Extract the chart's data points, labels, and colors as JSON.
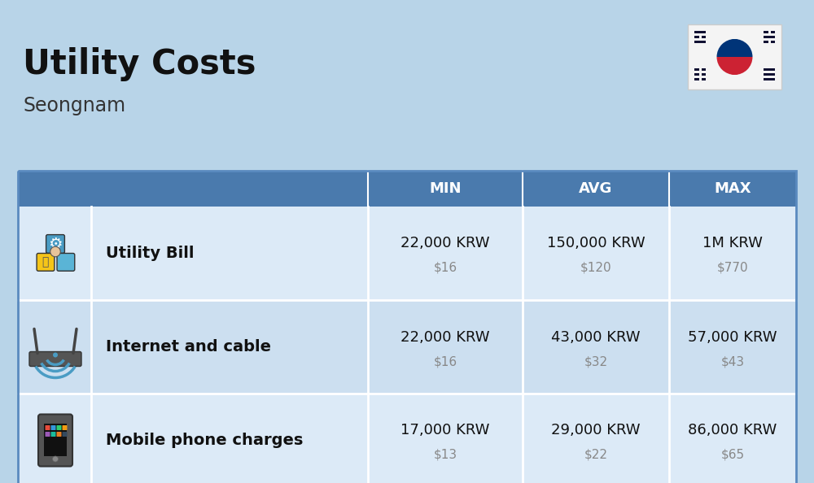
{
  "title": "Utility Costs",
  "subtitle": "Seongnam",
  "background_color": "#b8d4e8",
  "header_color": "#4a7aad",
  "header_text_color": "#ffffff",
  "row_color_light": "#dceaf7",
  "row_color_dark": "#ccdff0",
  "divider_color": "#ffffff",
  "col_headers": [
    "MIN",
    "AVG",
    "MAX"
  ],
  "rows": [
    {
      "label": "Utility Bill",
      "min_krw": "22,000 KRW",
      "min_usd": "$16",
      "avg_krw": "150,000 KRW",
      "avg_usd": "$120",
      "max_krw": "1M KRW",
      "max_usd": "$770"
    },
    {
      "label": "Internet and cable",
      "min_krw": "22,000 KRW",
      "min_usd": "$16",
      "avg_krw": "43,000 KRW",
      "avg_usd": "$32",
      "max_krw": "57,000 KRW",
      "max_usd": "$43"
    },
    {
      "label": "Mobile phone charges",
      "min_krw": "17,000 KRW",
      "min_usd": "$13",
      "avg_krw": "29,000 KRW",
      "avg_usd": "$22",
      "max_krw": "86,000 KRW",
      "max_usd": "$65"
    }
  ],
  "title_fontsize": 30,
  "subtitle_fontsize": 17,
  "header_fontsize": 13,
  "label_fontsize": 14,
  "value_fontsize": 13,
  "usd_fontsize": 11,
  "flag_box_color": "#f0f0f0",
  "table_border_color": "#5a8abf",
  "label_color": "#111111",
  "usd_color": "#888888"
}
